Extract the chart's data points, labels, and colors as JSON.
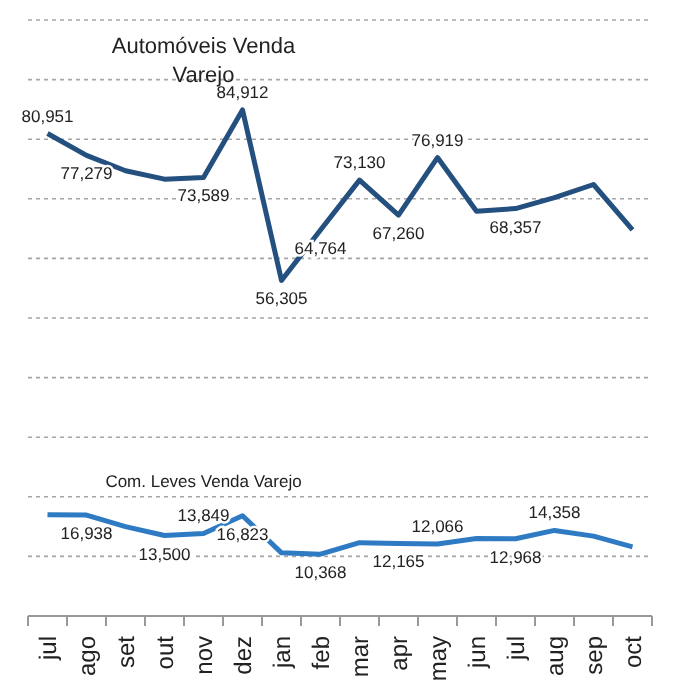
{
  "chart_data": {
    "type": "line",
    "categories": [
      "jul",
      "ago",
      "set",
      "out",
      "nov",
      "dez",
      "jan",
      "feb",
      "mar",
      "apr",
      "may",
      "jun",
      "jul",
      "aug",
      "sep",
      "oct"
    ],
    "series": [
      {
        "name": "Automóveis Venda Varejo",
        "color": "#24507f",
        "values": [
          80951,
          77279,
          74700,
          73300,
          73589,
          84912,
          56305,
          64764,
          73130,
          67260,
          76919,
          67900,
          68357,
          70200,
          72400,
          64800
        ],
        "value_labels": [
          "80,951",
          "77,279",
          null,
          null,
          "73,589",
          "84,912",
          "56,305",
          "64,764",
          "73,130",
          "67,260",
          "76,919",
          null,
          "68,357",
          null,
          null,
          null
        ]
      },
      {
        "name": "Com. Leves Venda Varejo",
        "color": "#2e7bc4",
        "values": [
          17000,
          16938,
          15000,
          13500,
          13849,
          16823,
          10600,
          10368,
          12300,
          12165,
          12066,
          13000,
          12968,
          14358,
          13400,
          11600
        ],
        "value_labels": [
          null,
          "16,938",
          null,
          "13,500",
          "13,849",
          "16,823",
          null,
          "10,368",
          null,
          "12,165",
          "12,066",
          null,
          "12,968",
          "14,358",
          null,
          null
        ]
      }
    ],
    "ylim": [
      0,
      100000
    ],
    "yticks": [
      {
        "value": 0,
        "label": null
      },
      {
        "value": 10000,
        "label": null
      },
      {
        "value": 20000,
        "label": null
      },
      {
        "value": 30000,
        "label": null
      },
      {
        "value": 40000,
        "label": null
      },
      {
        "value": 50000,
        "label": null
      },
      {
        "value": 60000,
        "label": null
      },
      {
        "value": 70000,
        "label": null
      },
      {
        "value": 80000,
        "label": null
      },
      {
        "value": 90000,
        "label": null
      },
      {
        "value": 100000,
        "label": null
      }
    ],
    "grid": "y",
    "tick_labels": "x",
    "marker": "none",
    "line_style": "solid"
  }
}
